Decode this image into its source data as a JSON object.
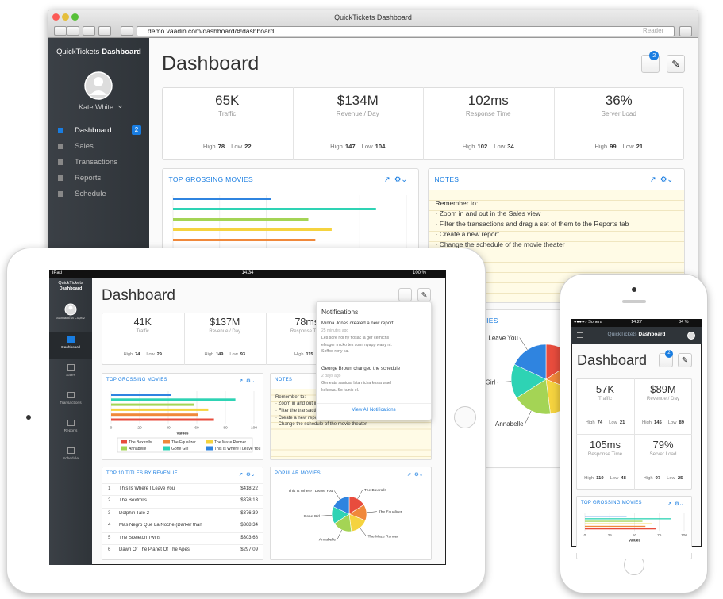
{
  "common": {
    "high": "High",
    "low": "Low",
    "badge": "2",
    "page_title": "Dashboard",
    "brand_plain": "QuickTickets",
    "brand_bold": "Dashboard",
    "menu": [
      "Dashboard",
      "Sales",
      "Transactions",
      "Reports",
      "Schedule"
    ],
    "notes_title": "NOTES",
    "notes": [
      "Remember to:",
      "· Zoom in and out in the Sales view",
      "· Filter the transactions and drag a set of them to the Reports tab",
      "· Create a new report",
      "· Change the schedule of the movie theater"
    ]
  },
  "browser": {
    "title": "QuickTickets Dashboard",
    "url": "demo.vaadin.com/dashboard/#!dashboard",
    "reader": "Reader"
  },
  "desktop": {
    "user": "Kate White",
    "kpis": [
      {
        "value": "65K",
        "label": "Traffic",
        "high": "78",
        "low": "22"
      },
      {
        "value": "$134M",
        "label": "Revenue / Day",
        "high": "147",
        "low": "104"
      },
      {
        "value": "102ms",
        "label": "Response Time",
        "high": "102",
        "low": "34"
      },
      {
        "value": "36%",
        "label": "Server Load",
        "high": "99",
        "low": "21"
      }
    ]
  },
  "tablet": {
    "status": {
      "device": "iPad",
      "time": "14.34",
      "battery": "100 %"
    },
    "user": "Samantha Lopez",
    "kpis": [
      {
        "value": "41K",
        "label": "Traffic",
        "high": "74",
        "low": "29"
      },
      {
        "value": "$137M",
        "label": "Revenue / Day",
        "high": "149",
        "low": "93"
      },
      {
        "value": "78ms",
        "label": "Response Time",
        "high": "115"
      }
    ],
    "top10": {
      "title": "TOP 10 TITLES BY REVENUE",
      "rows": [
        [
          "1",
          "This Is Where I Leave You",
          "$418.22"
        ],
        [
          "2",
          "The Boxtrolls",
          "$378.13"
        ],
        [
          "3",
          "Dolphin Tale 2",
          "$376.39"
        ],
        [
          "4",
          "Mas Negro Que La Noche (Darker than",
          "$368.34"
        ],
        [
          "5",
          "The Skeleton Twins",
          "$303.68"
        ],
        [
          "6",
          "Dawn Of The Planet Of The Apes",
          "$297.09"
        ]
      ]
    },
    "notifications": {
      "title": "Notifications",
      "items": [
        {
          "title": "Minna Jones created a new report",
          "time": "25 minutes ago",
          "body": [
            "Les sore nol ny fiosac la ger cemicns",
            "elsoger micko tes somi nyapp wany ni.",
            "Soffoo rony ka."
          ]
        },
        {
          "title": "George Brown changed the schedule",
          "time": "2 days ago",
          "body": [
            "Geneata sanicsa lsta nicha kosia wael",
            "kekowa. So kunic el."
          ]
        }
      ],
      "footer": "View All Notifications"
    }
  },
  "phone": {
    "status": {
      "carrier": "●●●●○ Sonera",
      "time": "14.27",
      "battery": "84 %"
    },
    "kpis": [
      {
        "value": "57K",
        "label": "Traffic",
        "high": "74",
        "low": "21"
      },
      {
        "value": "$89M",
        "label": "Revenue / Day",
        "high": "145",
        "low": "89"
      },
      {
        "value": "105ms",
        "label": "Response Time",
        "high": "110",
        "low": "48"
      },
      {
        "value": "79%",
        "label": "Server Load",
        "high": "97",
        "low": "25"
      }
    ]
  },
  "chart_data": [
    {
      "type": "bar",
      "title": "TOP GROSSING MOVIES",
      "categories": [
        "The Boxtrolls",
        "The Equalizer",
        "The Maze Runner",
        "Annabelle",
        "Gone Girl",
        "This Is Where I Leave You"
      ],
      "values": [
        72,
        61,
        68,
        58,
        87,
        42
      ],
      "colors": [
        "#e84c3d",
        "#f0883a",
        "#f5d33f",
        "#a4d455",
        "#2ed3b4",
        "#2f84e0"
      ],
      "xlim": [
        0,
        100
      ],
      "xticks": [
        0,
        20,
        40,
        60,
        80,
        100
      ],
      "xlabel": "Values",
      "legend": true
    },
    {
      "type": "bar",
      "title": "TOP GROSSING MOVIES",
      "categories": [
        "The Boxtrolls",
        "The Equalizer",
        "The Maze Runner",
        "Annabelle",
        "Gone Girl",
        "This Is Where I Leave You"
      ],
      "values": [
        72,
        61,
        68,
        58,
        87,
        42
      ],
      "colors": [
        "#e84c3d",
        "#f0883a",
        "#f5d33f",
        "#a4d455",
        "#2ed3b4",
        "#2f84e0"
      ],
      "xlim": [
        0,
        100
      ],
      "xticks": [
        0,
        25,
        50,
        75,
        100
      ],
      "xlabel": "Values",
      "legend": false
    },
    {
      "type": "pie",
      "title": "POPULAR MOVIES",
      "categories": [
        "The Boxtrolls",
        "The Equalizer",
        "The Maze Runner",
        "Annabelle",
        "Gone Girl",
        "This Is Where I Leave You"
      ],
      "values": [
        16,
        15,
        17,
        18,
        16,
        18
      ],
      "colors": [
        "#e84c3d",
        "#f0883a",
        "#f5d33f",
        "#a4d455",
        "#2ed3b4",
        "#2f84e0"
      ]
    }
  ]
}
